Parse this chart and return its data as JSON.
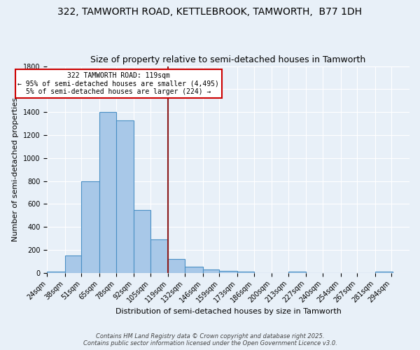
{
  "title_line1": "322, TAMWORTH ROAD, KETTLEBROOK, TAMWORTH,  B77 1DH",
  "title_line2": "Size of property relative to semi-detached houses in Tamworth",
  "xlabel": "Distribution of semi-detached houses by size in Tamworth",
  "ylabel": "Number of semi-detached properties",
  "footnote1": "Contains HM Land Registry data © Crown copyright and database right 2025.",
  "footnote2": "Contains public sector information licensed under the Open Government Licence v3.0.",
  "bin_labels": [
    "24sqm",
    "38sqm",
    "51sqm",
    "65sqm",
    "78sqm",
    "92sqm",
    "105sqm",
    "119sqm",
    "132sqm",
    "146sqm",
    "159sqm",
    "173sqm",
    "186sqm",
    "200sqm",
    "213sqm",
    "227sqm",
    "240sqm",
    "254sqm",
    "267sqm",
    "281sqm",
    "294sqm"
  ],
  "bin_edges": [
    24,
    38,
    51,
    65,
    78,
    92,
    105,
    119,
    132,
    146,
    159,
    173,
    186,
    200,
    213,
    227,
    240,
    254,
    267,
    281,
    294
  ],
  "counts": [
    10,
    150,
    800,
    1400,
    1330,
    550,
    290,
    120,
    52,
    30,
    15,
    10,
    0,
    0,
    10,
    0,
    0,
    0,
    0,
    10
  ],
  "bar_color": "#a8c8e8",
  "bar_edge_color": "#4a90c4",
  "bar_linewidth": 0.8,
  "vline_x": 119,
  "vline_color": "#8b1a1a",
  "vline_linewidth": 1.5,
  "property_value": "119sqm",
  "pct_smaller": 95,
  "n_smaller": 4495,
  "pct_larger": 5,
  "n_larger": 224,
  "annotation_text_line1": "322 TAMWORTH ROAD: 119sqm",
  "annotation_text_line2": "← 95% of semi-detached houses are smaller (4,495)",
  "annotation_text_line3": "5% of semi-detached houses are larger (224) →",
  "annotation_box_color": "#ffffff",
  "annotation_box_edge": "#cc0000",
  "ylim": [
    0,
    1800
  ],
  "yticks": [
    0,
    200,
    400,
    600,
    800,
    1000,
    1200,
    1400,
    1600,
    1800
  ],
  "bg_color": "#e8f0f8",
  "plot_bg_color": "#e8f0f8",
  "grid_color": "#ffffff",
  "title_fontsize": 10,
  "subtitle_fontsize": 9,
  "axis_label_fontsize": 8,
  "tick_fontsize": 7,
  "annotation_fontsize": 7
}
